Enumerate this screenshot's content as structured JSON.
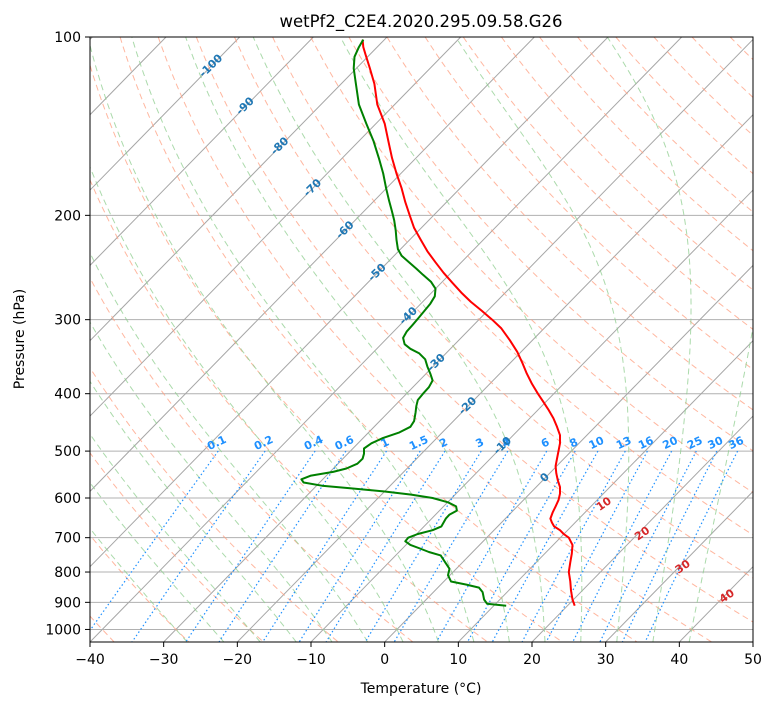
{
  "chart_data": {
    "type": "line",
    "title": "wetPf2_C2E4.2020.295.09.58.G26",
    "xlabel": "Temperature (°C)",
    "ylabel": "Pressure (hPa)",
    "xlim": [
      -40,
      50
    ],
    "ylim": [
      1050,
      100
    ],
    "y_scale": "log",
    "grid": true,
    "x_ticks": [
      -40,
      -30,
      -20,
      -10,
      0,
      10,
      20,
      30,
      40,
      50
    ],
    "y_ticks": [
      100,
      200,
      300,
      400,
      500,
      600,
      700,
      800,
      900,
      1000
    ],
    "colors": {
      "temperature": "#ff0000",
      "dewpoint": "#008000",
      "isotherms": "#a6a6a6",
      "dry_adiabats": "#ff9f80",
      "moist_adiabats": "#8fce8f",
      "mixing_ratio": "#1e90ff",
      "isotherm_labels": "#1f77b4",
      "adiabat_labels": "#d62728"
    },
    "series": [
      {
        "key": "temperature",
        "points": [
          [
            25.8,
            912
          ],
          [
            25.5,
            890
          ],
          [
            25.3,
            860
          ],
          [
            25.2,
            830
          ],
          [
            25.0,
            800
          ],
          [
            25.2,
            770
          ],
          [
            25.4,
            745
          ],
          [
            25.5,
            720
          ],
          [
            25.0,
            700
          ],
          [
            24.3,
            690
          ],
          [
            23.8,
            680
          ],
          [
            23.0,
            670
          ],
          [
            22.7,
            660
          ],
          [
            22.5,
            650
          ],
          [
            22.8,
            635
          ],
          [
            23.2,
            620
          ],
          [
            23.6,
            605
          ],
          [
            23.8,
            590
          ],
          [
            23.8,
            575
          ],
          [
            23.5,
            560
          ],
          [
            23.3,
            545
          ],
          [
            23.2,
            530
          ],
          [
            23.4,
            515
          ],
          [
            23.6,
            500
          ],
          [
            23.8,
            485
          ],
          [
            23.8,
            470
          ],
          [
            23.4,
            455
          ],
          [
            22.9,
            440
          ],
          [
            22.2,
            425
          ],
          [
            21.5,
            412
          ],
          [
            20.8,
            400
          ],
          [
            20.0,
            385
          ],
          [
            19.3,
            370
          ],
          [
            18.7,
            355
          ],
          [
            18.0,
            340
          ],
          [
            17.0,
            325
          ],
          [
            15.8,
            310
          ],
          [
            14.6,
            300
          ],
          [
            13.2,
            290
          ],
          [
            11.7,
            280
          ],
          [
            10.4,
            270
          ],
          [
            9.2,
            260
          ],
          [
            8.0,
            250
          ],
          [
            6.9,
            240
          ],
          [
            5.8,
            230
          ],
          [
            4.9,
            220
          ],
          [
            4.0,
            210
          ],
          [
            3.4,
            200
          ],
          [
            2.8,
            190
          ],
          [
            2.3,
            180
          ],
          [
            1.6,
            170
          ],
          [
            1.0,
            160
          ],
          [
            0.5,
            150
          ],
          [
            0.0,
            140
          ],
          [
            -1.0,
            130
          ],
          [
            -1.4,
            120
          ],
          [
            -2.0,
            113
          ],
          [
            -2.6,
            107
          ],
          [
            -2.9,
            104
          ],
          [
            -3.0,
            101
          ]
        ]
      },
      {
        "key": "dewpoint",
        "points": [
          [
            16.5,
            912
          ],
          [
            13.9,
            905
          ],
          [
            13.5,
            890
          ],
          [
            13.3,
            865
          ],
          [
            12.8,
            850
          ],
          [
            11.1,
            840
          ],
          [
            9.0,
            830
          ],
          [
            8.6,
            810
          ],
          [
            8.8,
            790
          ],
          [
            8.2,
            770
          ],
          [
            7.6,
            750
          ],
          [
            6.0,
            740
          ],
          [
            4.8,
            730
          ],
          [
            3.5,
            720
          ],
          [
            2.8,
            710
          ],
          [
            3.2,
            700
          ],
          [
            4.5,
            690
          ],
          [
            6.5,
            680
          ],
          [
            7.7,
            670
          ],
          [
            8.0,
            660
          ],
          [
            8.3,
            650
          ],
          [
            8.8,
            640
          ],
          [
            9.8,
            630
          ],
          [
            9.7,
            620
          ],
          [
            8.6,
            610
          ],
          [
            6.5,
            600
          ],
          [
            3.6,
            592
          ],
          [
            0.0,
            585
          ],
          [
            -4.5,
            578
          ],
          [
            -8.5,
            572
          ],
          [
            -11.0,
            565
          ],
          [
            -11.3,
            558
          ],
          [
            -10.0,
            550
          ],
          [
            -7.0,
            542
          ],
          [
            -5.2,
            535
          ],
          [
            -3.7,
            525
          ],
          [
            -3.0,
            515
          ],
          [
            -2.8,
            505
          ],
          [
            -2.8,
            495
          ],
          [
            -1.8,
            485
          ],
          [
            -0.2,
            475
          ],
          [
            2.0,
            465
          ],
          [
            3.5,
            455
          ],
          [
            4.0,
            445
          ],
          [
            4.2,
            430
          ],
          [
            4.3,
            420
          ],
          [
            4.5,
            410
          ],
          [
            5.2,
            400
          ],
          [
            6.0,
            390
          ],
          [
            6.5,
            380
          ],
          [
            6.2,
            370
          ],
          [
            5.8,
            360
          ],
          [
            5.5,
            350
          ],
          [
            4.7,
            342
          ],
          [
            3.5,
            336
          ],
          [
            2.7,
            330
          ],
          [
            2.5,
            322
          ],
          [
            3.0,
            314
          ],
          [
            3.8,
            306
          ],
          [
            4.6,
            298
          ],
          [
            5.4,
            290
          ],
          [
            6.2,
            282
          ],
          [
            6.8,
            274
          ],
          [
            6.9,
            266
          ],
          [
            6.3,
            259
          ],
          [
            5.2,
            252
          ],
          [
            4.3,
            246
          ],
          [
            3.3,
            240
          ],
          [
            2.3,
            234
          ],
          [
            1.8,
            228
          ],
          [
            1.6,
            220
          ],
          [
            1.5,
            212
          ],
          [
            1.3,
            204
          ],
          [
            1.0,
            197
          ],
          [
            0.6,
            189
          ],
          [
            0.2,
            180
          ],
          [
            -0.2,
            170
          ],
          [
            -0.8,
            160
          ],
          [
            -1.5,
            150
          ],
          [
            -2.5,
            140
          ],
          [
            -3.5,
            130
          ],
          [
            -3.9,
            120
          ],
          [
            -4.2,
            113
          ],
          [
            -4.1,
            108
          ],
          [
            -3.5,
            104
          ],
          [
            -2.9,
            101
          ]
        ]
      }
    ],
    "isotherm_labels": [
      -100,
      -90,
      -80,
      -70,
      -60,
      -50,
      -40,
      -30,
      -20,
      -10,
      0
    ],
    "dry_adiabat_labels": [
      10,
      20,
      30,
      40
    ],
    "mixing_ratio_labels": [
      "0.1",
      "0.2",
      "0.4",
      "0.6",
      "1",
      "1.5",
      "2",
      "3",
      "4",
      "6",
      "8",
      "10",
      "13",
      "16",
      "20",
      "25",
      "30",
      "36"
    ]
  }
}
